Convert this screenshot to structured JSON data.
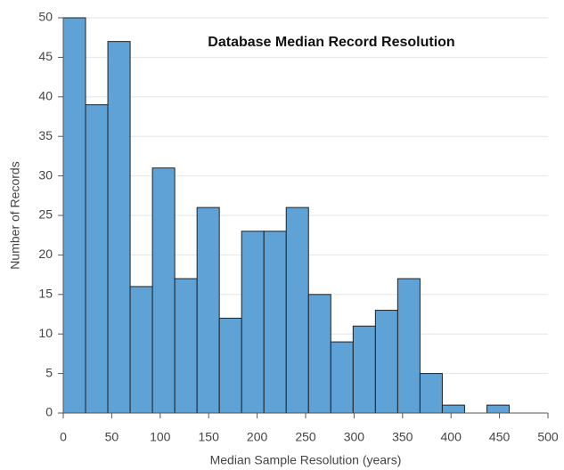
{
  "chart_data": {
    "type": "histogram",
    "title": "Database Median Record Resolution",
    "x_label": "Median Sample Resolution (years)",
    "y_label": "Number of Records",
    "bins": [
      0,
      23,
      46,
      69,
      92,
      115,
      138,
      161,
      184,
      207,
      230,
      253,
      276,
      299,
      322,
      345,
      368,
      391,
      414,
      437,
      460
    ],
    "values": [
      50,
      39,
      47,
      16,
      31,
      17,
      26,
      12,
      23,
      23,
      26,
      15,
      9,
      11,
      13,
      17,
      5,
      1,
      0,
      1
    ],
    "color": "#5fa2d6",
    "xlim": [
      0,
      500
    ],
    "xticks": [
      0,
      50,
      100,
      150,
      200,
      250,
      300,
      350,
      400,
      450,
      500
    ],
    "ylim": [
      0,
      50
    ],
    "yticks": [
      0,
      5,
      10,
      15,
      20,
      25,
      30,
      35,
      40,
      45,
      50
    ],
    "grid": true
  }
}
